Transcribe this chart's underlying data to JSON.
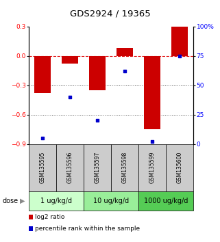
{
  "title": "GDS2924 / 19365",
  "samples": [
    "GSM135595",
    "GSM135596",
    "GSM135597",
    "GSM135598",
    "GSM135599",
    "GSM135600"
  ],
  "log2_ratio": [
    -0.38,
    -0.08,
    -0.35,
    0.08,
    -0.75,
    0.3
  ],
  "percentile_rank": [
    5,
    40,
    20,
    62,
    2,
    75
  ],
  "bar_color": "#cc0000",
  "dot_color": "#0000cc",
  "ylim_left": [
    -0.9,
    0.3
  ],
  "ylim_right": [
    0,
    100
  ],
  "yticks_left": [
    0.3,
    0.0,
    -0.3,
    -0.6,
    -0.9
  ],
  "yticks_right": [
    100,
    75,
    50,
    25,
    0
  ],
  "dose_groups": [
    {
      "label": "1 ug/kg/d",
      "cols": [
        0,
        1
      ],
      "color": "#ccffcc"
    },
    {
      "label": "10 ug/kg/d",
      "cols": [
        2,
        3
      ],
      "color": "#99ee99"
    },
    {
      "label": "1000 ug/kg/d",
      "cols": [
        4,
        5
      ],
      "color": "#55cc55"
    }
  ],
  "dose_label": "dose",
  "legend_log2": "log2 ratio",
  "legend_pct": "percentile rank within the sample",
  "hline_color": "#dd0000",
  "dotted_line_color": "#555555",
  "bar_width": 0.6,
  "title_fontsize": 9.5,
  "tick_fontsize": 6.5,
  "sample_fontsize": 5.5,
  "dose_fontsize": 7,
  "legend_fontsize": 6.5,
  "bg_color": "#ffffff",
  "sample_box_color": "#cccccc",
  "dose_arrow_fontsize": 7
}
